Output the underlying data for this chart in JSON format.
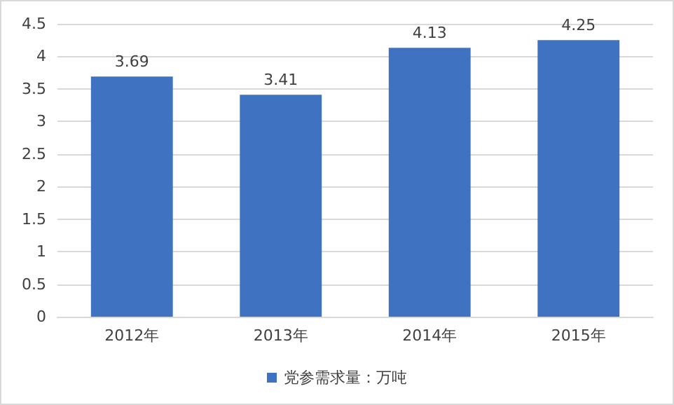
{
  "chart_data": {
    "type": "bar",
    "categories": [
      "2012年",
      "2013年",
      "2014年",
      "2015年"
    ],
    "series": [
      {
        "name": "党参需求量：万吨",
        "color": "#3f72c0",
        "values": [
          3.69,
          3.41,
          4.13,
          4.25
        ]
      }
    ],
    "ylim": [
      0,
      4.5
    ],
    "yticks": [
      0,
      0.5,
      1,
      1.5,
      2,
      2.5,
      3,
      3.5,
      4,
      4.5
    ],
    "grid": "y",
    "legend": "bottom",
    "data_labels": true
  }
}
